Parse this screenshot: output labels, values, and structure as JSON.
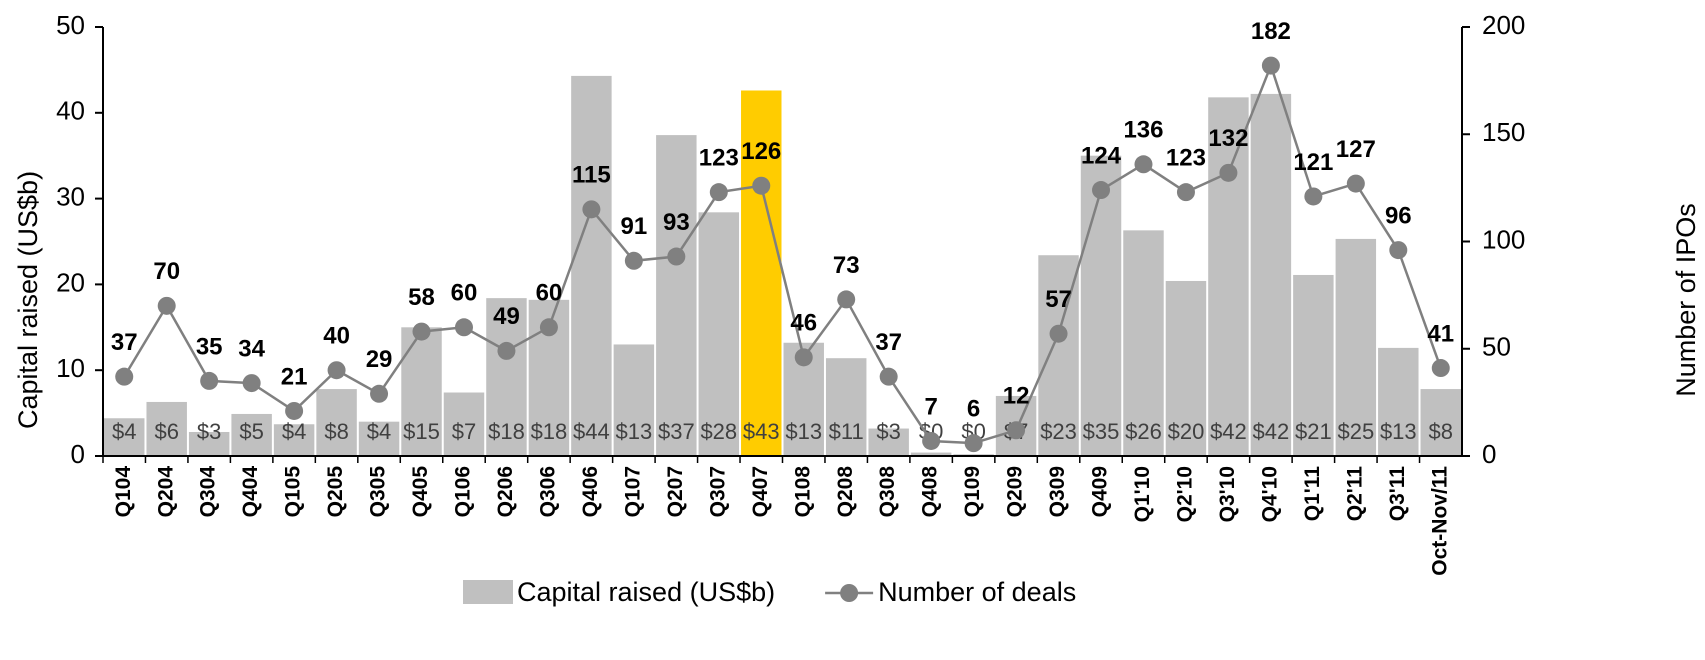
{
  "chart_data": {
    "type": "bar",
    "categories": [
      "Q104",
      "Q204",
      "Q304",
      "Q404",
      "Q105",
      "Q205",
      "Q305",
      "Q405",
      "Q106",
      "Q206",
      "Q306",
      "Q406",
      "Q107",
      "Q207",
      "Q307",
      "Q407",
      "Q108",
      "Q208",
      "Q308",
      "Q408",
      "Q109",
      "Q209",
      "Q309",
      "Q409",
      "Q1'10",
      "Q2'10",
      "Q3'10",
      "Q4'10",
      "Q1'11",
      "Q2'11",
      "Q3'11",
      "Oct-Nov/11"
    ],
    "ylabel": "Capital raised (US$b)",
    "y2label": "Number of IPOs",
    "ylim": [
      0,
      50
    ],
    "yticks": [
      0,
      10,
      20,
      30,
      40,
      50
    ],
    "y2lim": [
      0,
      200
    ],
    "y2ticks": [
      0,
      50,
      100,
      150,
      200
    ],
    "series": [
      {
        "name": "Capital raised (US$b)",
        "type": "bar",
        "color": "#c0c0c0",
        "colors": [
          "#c0c0c0",
          "#c0c0c0",
          "#c0c0c0",
          "#c0c0c0",
          "#c0c0c0",
          "#c0c0c0",
          "#c0c0c0",
          "#c0c0c0",
          "#c0c0c0",
          "#c0c0c0",
          "#c0c0c0",
          "#c0c0c0",
          "#c0c0c0",
          "#c0c0c0",
          "#c0c0c0",
          "#ffcc00",
          "#c0c0c0",
          "#c0c0c0",
          "#c0c0c0",
          "#c0c0c0",
          "#c0c0c0",
          "#c0c0c0",
          "#c0c0c0",
          "#c0c0c0",
          "#c0c0c0",
          "#c0c0c0",
          "#c0c0c0",
          "#c0c0c0",
          "#c0c0c0",
          "#c0c0c0",
          "#c0c0c0",
          "#c0c0c0"
        ],
        "values": [
          4.4,
          6.3,
          2.8,
          4.9,
          3.7,
          7.8,
          4.0,
          15.0,
          7.4,
          18.4,
          18.2,
          44.3,
          13.0,
          37.4,
          28.4,
          42.6,
          13.2,
          11.4,
          3.2,
          0.4,
          0.2,
          7.0,
          23.4,
          35.0,
          26.3,
          20.4,
          41.8,
          42.2,
          21.1,
          25.3,
          12.6,
          7.8
        ],
        "value_labels": [
          "$4",
          "$6",
          "$3",
          "$5",
          "$4",
          "$8",
          "$4",
          "$15",
          "$7",
          "$18",
          "$18",
          "$44",
          "$13",
          "$37",
          "$28",
          "$43",
          "$13",
          "$11",
          "$3",
          "$0",
          "$0",
          "$7",
          "$23",
          "$35",
          "$26",
          "$20",
          "$42",
          "$42",
          "$21",
          "$25",
          "$13",
          "$8"
        ]
      },
      {
        "name": "Number of deals",
        "type": "line",
        "color": "#808080",
        "axis": "y2",
        "values": [
          37,
          70,
          35,
          34,
          21,
          40,
          29,
          58,
          60,
          49,
          60,
          115,
          91,
          93,
          123,
          126,
          46,
          73,
          37,
          7,
          6,
          12,
          57,
          124,
          136,
          123,
          132,
          182,
          121,
          127,
          96,
          41
        ]
      }
    ]
  }
}
